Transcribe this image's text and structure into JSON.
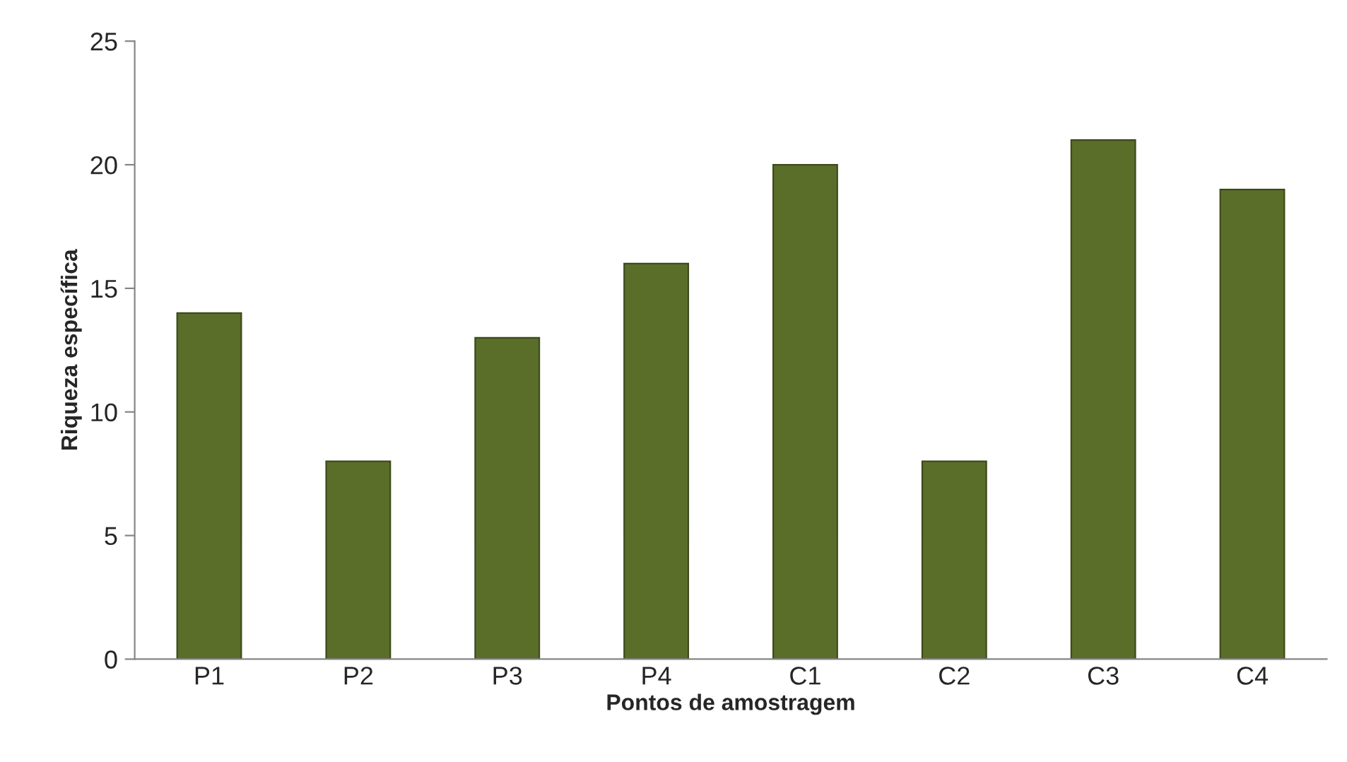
{
  "chart_data": {
    "type": "bar",
    "xlabel": "Pontos de amostragem",
    "ylabel": "Riqueza específica",
    "categories": [
      "P1",
      "P2",
      "P3",
      "P4",
      "C1",
      "C2",
      "C3",
      "C4"
    ],
    "values": [
      14,
      8,
      13,
      16,
      20,
      8,
      21,
      19
    ],
    "color": "#5a6e2a",
    "ylim": [
      0,
      25
    ],
    "yticks": [
      0,
      5,
      10,
      15,
      20,
      25
    ],
    "grid": false,
    "legend": false
  }
}
